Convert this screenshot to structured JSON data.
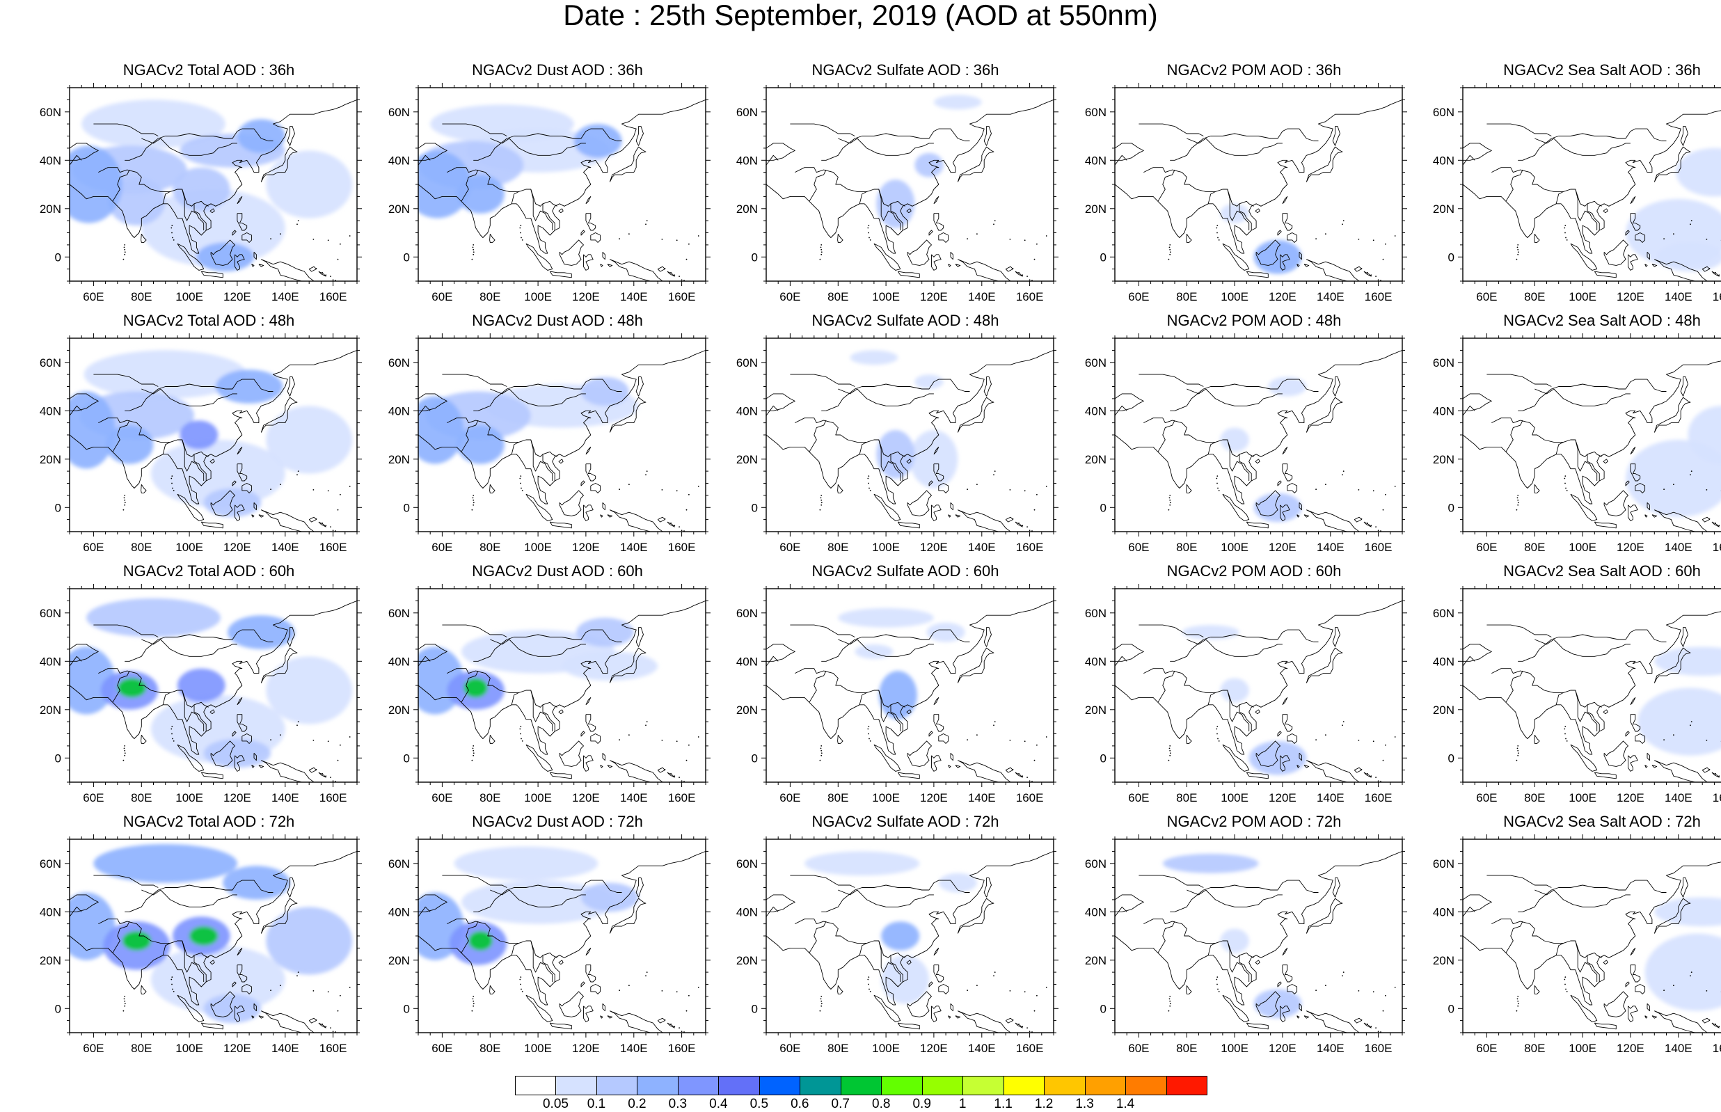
{
  "title": "Date : 25th September, 2019 (AOD at 550nm)",
  "panel_titles": [
    [
      "NGACv2 Total AOD : 36h",
      "NGACv2 Dust AOD : 36h",
      "NGACv2 Sulfate AOD : 36h",
      "NGACv2 POM AOD : 36h",
      "NGACv2 Sea Salt AOD : 36h"
    ],
    [
      "NGACv2 Total AOD : 48h",
      "NGACv2 Dust AOD : 48h",
      "NGACv2 Sulfate AOD : 48h",
      "NGACv2 POM AOD : 48h",
      "NGACv2 Sea Salt AOD : 48h"
    ],
    [
      "NGACv2 Total AOD : 60h",
      "NGACv2 Dust AOD : 60h",
      "NGACv2 Sulfate AOD : 60h",
      "NGACv2 POM AOD : 60h",
      "NGACv2 Sea Salt AOD : 60h"
    ],
    [
      "NGACv2 Total AOD : 72h",
      "NGACv2 Dust AOD : 72h",
      "NGACv2 Sulfate AOD : 72h",
      "NGACv2 POM AOD : 72h",
      "NGACv2 Sea Salt  AOD : 72h"
    ]
  ],
  "map_extent": {
    "lon": [
      50,
      170
    ],
    "lat": [
      -10,
      70
    ]
  },
  "lon_ticks": [
    60,
    80,
    100,
    120,
    140,
    160
  ],
  "lon_tick_labels": [
    "60E",
    "80E",
    "100E",
    "120E",
    "140E",
    "160E"
  ],
  "lat_ticks": [
    0,
    20,
    40,
    60
  ],
  "lat_tick_labels": [
    "0",
    "20N",
    "40N",
    "60N"
  ],
  "colorbar": {
    "levels": [
      "0.05",
      "0.1",
      "0.2",
      "0.3",
      "0.4",
      "0.5",
      "0.6",
      "0.7",
      "0.8",
      "0.9",
      "1",
      "1.1",
      "1.2",
      "1.3",
      "1.4"
    ],
    "colors": [
      "#ffffff",
      "#d6e2ff",
      "#b5c9ff",
      "#8eb2ff",
      "#7f96ff",
      "#6370f8",
      "#0063ff",
      "#009696",
      "#00c633",
      "#63ff00",
      "#96ff00",
      "#c6ff33",
      "#ffff00",
      "#ffc600",
      "#ffa000",
      "#ff7c00",
      "#ff1900"
    ]
  },
  "aod_fields": {
    "Total": [
      [
        {
          "lon": 58,
          "lat": 30,
          "rlon": 14,
          "rlat": 16,
          "level": 3
        },
        {
          "lon": 75,
          "lat": 36,
          "rlon": 24,
          "rlat": 10,
          "level": 2
        },
        {
          "lon": 78,
          "lat": 23,
          "rlon": 12,
          "rlat": 10,
          "level": 2
        },
        {
          "lon": 105,
          "lat": 28,
          "rlon": 12,
          "rlat": 9,
          "level": 2
        },
        {
          "lon": 118,
          "lat": 44,
          "rlon": 22,
          "rlat": 7,
          "level": 2
        },
        {
          "lon": 130,
          "lat": 50,
          "rlon": 10,
          "rlat": 7,
          "level": 3
        },
        {
          "lon": 110,
          "lat": 12,
          "rlon": 30,
          "rlat": 16,
          "level": 1
        },
        {
          "lon": 150,
          "lat": 30,
          "rlon": 18,
          "rlat": 14,
          "level": 1
        },
        {
          "lon": 115,
          "lat": 0,
          "rlon": 12,
          "rlat": 6,
          "level": 3
        },
        {
          "lon": 85,
          "lat": 55,
          "rlon": 30,
          "rlat": 10,
          "level": 1
        }
      ],
      [
        {
          "lon": 57,
          "lat": 32,
          "rlon": 12,
          "rlat": 16,
          "level": 3
        },
        {
          "lon": 78,
          "lat": 38,
          "rlon": 24,
          "rlat": 10,
          "level": 2
        },
        {
          "lon": 75,
          "lat": 26,
          "rlon": 10,
          "rlat": 8,
          "level": 3
        },
        {
          "lon": 104,
          "lat": 30,
          "rlon": 8,
          "rlat": 6,
          "level": 4
        },
        {
          "lon": 125,
          "lat": 50,
          "rlon": 14,
          "rlat": 7,
          "level": 3
        },
        {
          "lon": 112,
          "lat": 14,
          "rlon": 28,
          "rlat": 14,
          "level": 1
        },
        {
          "lon": 150,
          "lat": 28,
          "rlon": 18,
          "rlat": 14,
          "level": 1
        },
        {
          "lon": 118,
          "lat": 2,
          "rlon": 12,
          "rlat": 6,
          "level": 2
        },
        {
          "lon": 90,
          "lat": 55,
          "rlon": 34,
          "rlat": 10,
          "level": 1
        }
      ],
      [
        {
          "lon": 57,
          "lat": 32,
          "rlon": 12,
          "rlat": 14,
          "level": 3
        },
        {
          "lon": 76,
          "lat": 29,
          "rlon": 6,
          "rlat": 4,
          "level": 8
        },
        {
          "lon": 75,
          "lat": 28,
          "rlon": 12,
          "rlat": 8,
          "level": 4
        },
        {
          "lon": 105,
          "lat": 30,
          "rlon": 10,
          "rlat": 7,
          "level": 4
        },
        {
          "lon": 130,
          "lat": 52,
          "rlon": 14,
          "rlat": 7,
          "level": 3
        },
        {
          "lon": 85,
          "lat": 58,
          "rlon": 28,
          "rlat": 8,
          "level": 2
        },
        {
          "lon": 112,
          "lat": 12,
          "rlon": 28,
          "rlat": 14,
          "level": 1
        },
        {
          "lon": 150,
          "lat": 28,
          "rlon": 18,
          "rlat": 14,
          "level": 1
        },
        {
          "lon": 120,
          "lat": 2,
          "rlon": 14,
          "rlat": 6,
          "level": 2
        }
      ],
      [
        {
          "lon": 57,
          "lat": 34,
          "rlon": 12,
          "rlat": 14,
          "level": 3
        },
        {
          "lon": 78,
          "lat": 28,
          "rlon": 6,
          "rlat": 4,
          "level": 8
        },
        {
          "lon": 78,
          "lat": 26,
          "rlon": 14,
          "rlat": 10,
          "level": 4
        },
        {
          "lon": 106,
          "lat": 30,
          "rlon": 6,
          "rlat": 4,
          "level": 8
        },
        {
          "lon": 105,
          "lat": 30,
          "rlon": 12,
          "rlat": 8,
          "level": 4
        },
        {
          "lon": 90,
          "lat": 60,
          "rlon": 30,
          "rlat": 8,
          "level": 3
        },
        {
          "lon": 128,
          "lat": 52,
          "rlon": 14,
          "rlat": 7,
          "level": 3
        },
        {
          "lon": 112,
          "lat": 12,
          "rlon": 28,
          "rlat": 14,
          "level": 1
        },
        {
          "lon": 150,
          "lat": 28,
          "rlon": 18,
          "rlat": 14,
          "level": 2
        },
        {
          "lon": 118,
          "lat": 0,
          "rlon": 12,
          "rlat": 6,
          "level": 2
        }
      ]
    ],
    "Dust": [
      [
        {
          "lon": 58,
          "lat": 30,
          "rlon": 14,
          "rlat": 14,
          "level": 3
        },
        {
          "lon": 72,
          "lat": 38,
          "rlon": 22,
          "rlat": 10,
          "level": 2
        },
        {
          "lon": 76,
          "lat": 26,
          "rlon": 10,
          "rlat": 8,
          "level": 3
        },
        {
          "lon": 100,
          "lat": 44,
          "rlon": 30,
          "rlat": 9,
          "level": 1
        },
        {
          "lon": 125,
          "lat": 48,
          "rlon": 10,
          "rlat": 7,
          "level": 3
        },
        {
          "lon": 85,
          "lat": 55,
          "rlon": 30,
          "rlat": 8,
          "level": 1
        }
      ],
      [
        {
          "lon": 57,
          "lat": 32,
          "rlon": 12,
          "rlat": 14,
          "level": 3
        },
        {
          "lon": 75,
          "lat": 38,
          "rlon": 22,
          "rlat": 10,
          "level": 2
        },
        {
          "lon": 76,
          "lat": 26,
          "rlon": 10,
          "rlat": 8,
          "level": 3
        },
        {
          "lon": 110,
          "lat": 42,
          "rlon": 32,
          "rlat": 9,
          "level": 1
        },
        {
          "lon": 128,
          "lat": 48,
          "rlon": 10,
          "rlat": 6,
          "level": 2
        }
      ],
      [
        {
          "lon": 57,
          "lat": 32,
          "rlon": 12,
          "rlat": 14,
          "level": 3
        },
        {
          "lon": 74,
          "lat": 29,
          "rlon": 5,
          "rlat": 4,
          "level": 8
        },
        {
          "lon": 74,
          "lat": 28,
          "rlon": 12,
          "rlat": 8,
          "level": 4
        },
        {
          "lon": 100,
          "lat": 44,
          "rlon": 32,
          "rlat": 9,
          "level": 1
        },
        {
          "lon": 128,
          "lat": 52,
          "rlon": 12,
          "rlat": 6,
          "level": 2
        },
        {
          "lon": 130,
          "lat": 38,
          "rlon": 20,
          "rlat": 6,
          "level": 1
        }
      ],
      [
        {
          "lon": 57,
          "lat": 34,
          "rlon": 12,
          "rlat": 14,
          "level": 3
        },
        {
          "lon": 76,
          "lat": 28,
          "rlon": 5,
          "rlat": 4,
          "level": 8
        },
        {
          "lon": 75,
          "lat": 27,
          "rlon": 12,
          "rlat": 9,
          "level": 4
        },
        {
          "lon": 100,
          "lat": 44,
          "rlon": 32,
          "rlat": 9,
          "level": 1
        },
        {
          "lon": 130,
          "lat": 46,
          "rlon": 12,
          "rlat": 6,
          "level": 2
        },
        {
          "lon": 95,
          "lat": 60,
          "rlon": 30,
          "rlat": 7,
          "level": 1
        }
      ]
    ],
    "Sulfate": [
      [
        {
          "lon": 104,
          "lat": 22,
          "rlon": 8,
          "rlat": 10,
          "level": 2
        },
        {
          "lon": 118,
          "lat": 38,
          "rlon": 6,
          "rlat": 5,
          "level": 2
        },
        {
          "lon": 130,
          "lat": 64,
          "rlon": 10,
          "rlat": 3,
          "level": 1
        }
      ],
      [
        {
          "lon": 104,
          "lat": 22,
          "rlon": 8,
          "rlat": 10,
          "level": 2
        },
        {
          "lon": 120,
          "lat": 20,
          "rlon": 10,
          "rlat": 12,
          "level": 1
        },
        {
          "lon": 95,
          "lat": 62,
          "rlon": 10,
          "rlat": 3,
          "level": 1
        },
        {
          "lon": 118,
          "lat": 52,
          "rlon": 6,
          "rlat": 3,
          "level": 1
        }
      ],
      [
        {
          "lon": 105,
          "lat": 26,
          "rlon": 8,
          "rlat": 10,
          "level": 3
        },
        {
          "lon": 100,
          "lat": 58,
          "rlon": 20,
          "rlat": 4,
          "level": 1
        },
        {
          "lon": 125,
          "lat": 52,
          "rlon": 8,
          "rlat": 4,
          "level": 1
        },
        {
          "lon": 95,
          "lat": 44,
          "rlon": 8,
          "rlat": 3,
          "level": 1
        }
      ],
      [
        {
          "lon": 106,
          "lat": 30,
          "rlon": 8,
          "rlat": 6,
          "level": 3
        },
        {
          "lon": 90,
          "lat": 60,
          "rlon": 24,
          "rlat": 5,
          "level": 1
        },
        {
          "lon": 130,
          "lat": 52,
          "rlon": 8,
          "rlat": 4,
          "level": 1
        },
        {
          "lon": 108,
          "lat": 12,
          "rlon": 10,
          "rlat": 10,
          "level": 1
        }
      ]
    ],
    "POM": [
      [
        {
          "lon": 118,
          "lat": 0,
          "rlon": 10,
          "rlat": 7,
          "level": 3
        },
        {
          "lon": 100,
          "lat": 18,
          "rlon": 6,
          "rlat": 4,
          "level": 1
        }
      ],
      [
        {
          "lon": 118,
          "lat": 0,
          "rlon": 10,
          "rlat": 6,
          "level": 2
        },
        {
          "lon": 122,
          "lat": 50,
          "rlon": 8,
          "rlat": 4,
          "level": 1
        },
        {
          "lon": 100,
          "lat": 28,
          "rlon": 6,
          "rlat": 5,
          "level": 1
        }
      ],
      [
        {
          "lon": 118,
          "lat": 0,
          "rlon": 12,
          "rlat": 7,
          "level": 2
        },
        {
          "lon": 100,
          "lat": 28,
          "rlon": 6,
          "rlat": 5,
          "level": 1
        },
        {
          "lon": 90,
          "lat": 52,
          "rlon": 12,
          "rlat": 3,
          "level": 1
        }
      ],
      [
        {
          "lon": 118,
          "lat": 2,
          "rlon": 10,
          "rlat": 6,
          "level": 2
        },
        {
          "lon": 90,
          "lat": 60,
          "rlon": 20,
          "rlat": 4,
          "level": 2
        },
        {
          "lon": 100,
          "lat": 28,
          "rlon": 6,
          "rlat": 5,
          "level": 1
        }
      ]
    ],
    "SeaSalt": [
      [
        {
          "lon": 140,
          "lat": 10,
          "rlon": 22,
          "rlat": 14,
          "level": 1
        },
        {
          "lon": 155,
          "lat": 35,
          "rlon": 16,
          "rlat": 10,
          "level": 1
        },
        {
          "lon": 145,
          "lat": 0,
          "rlon": 14,
          "rlat": 6,
          "level": 1
        }
      ],
      [
        {
          "lon": 140,
          "lat": 12,
          "rlon": 22,
          "rlat": 16,
          "level": 1
        },
        {
          "lon": 158,
          "lat": 30,
          "rlon": 14,
          "rlat": 12,
          "level": 1
        }
      ],
      [
        {
          "lon": 145,
          "lat": 15,
          "rlon": 22,
          "rlat": 14,
          "level": 1
        },
        {
          "lon": 150,
          "lat": 40,
          "rlon": 20,
          "rlat": 6,
          "level": 1
        }
      ],
      [
        {
          "lon": 148,
          "lat": 15,
          "rlon": 22,
          "rlat": 16,
          "level": 1
        },
        {
          "lon": 150,
          "lat": 40,
          "rlon": 20,
          "rlat": 6,
          "level": 1
        }
      ]
    ]
  }
}
